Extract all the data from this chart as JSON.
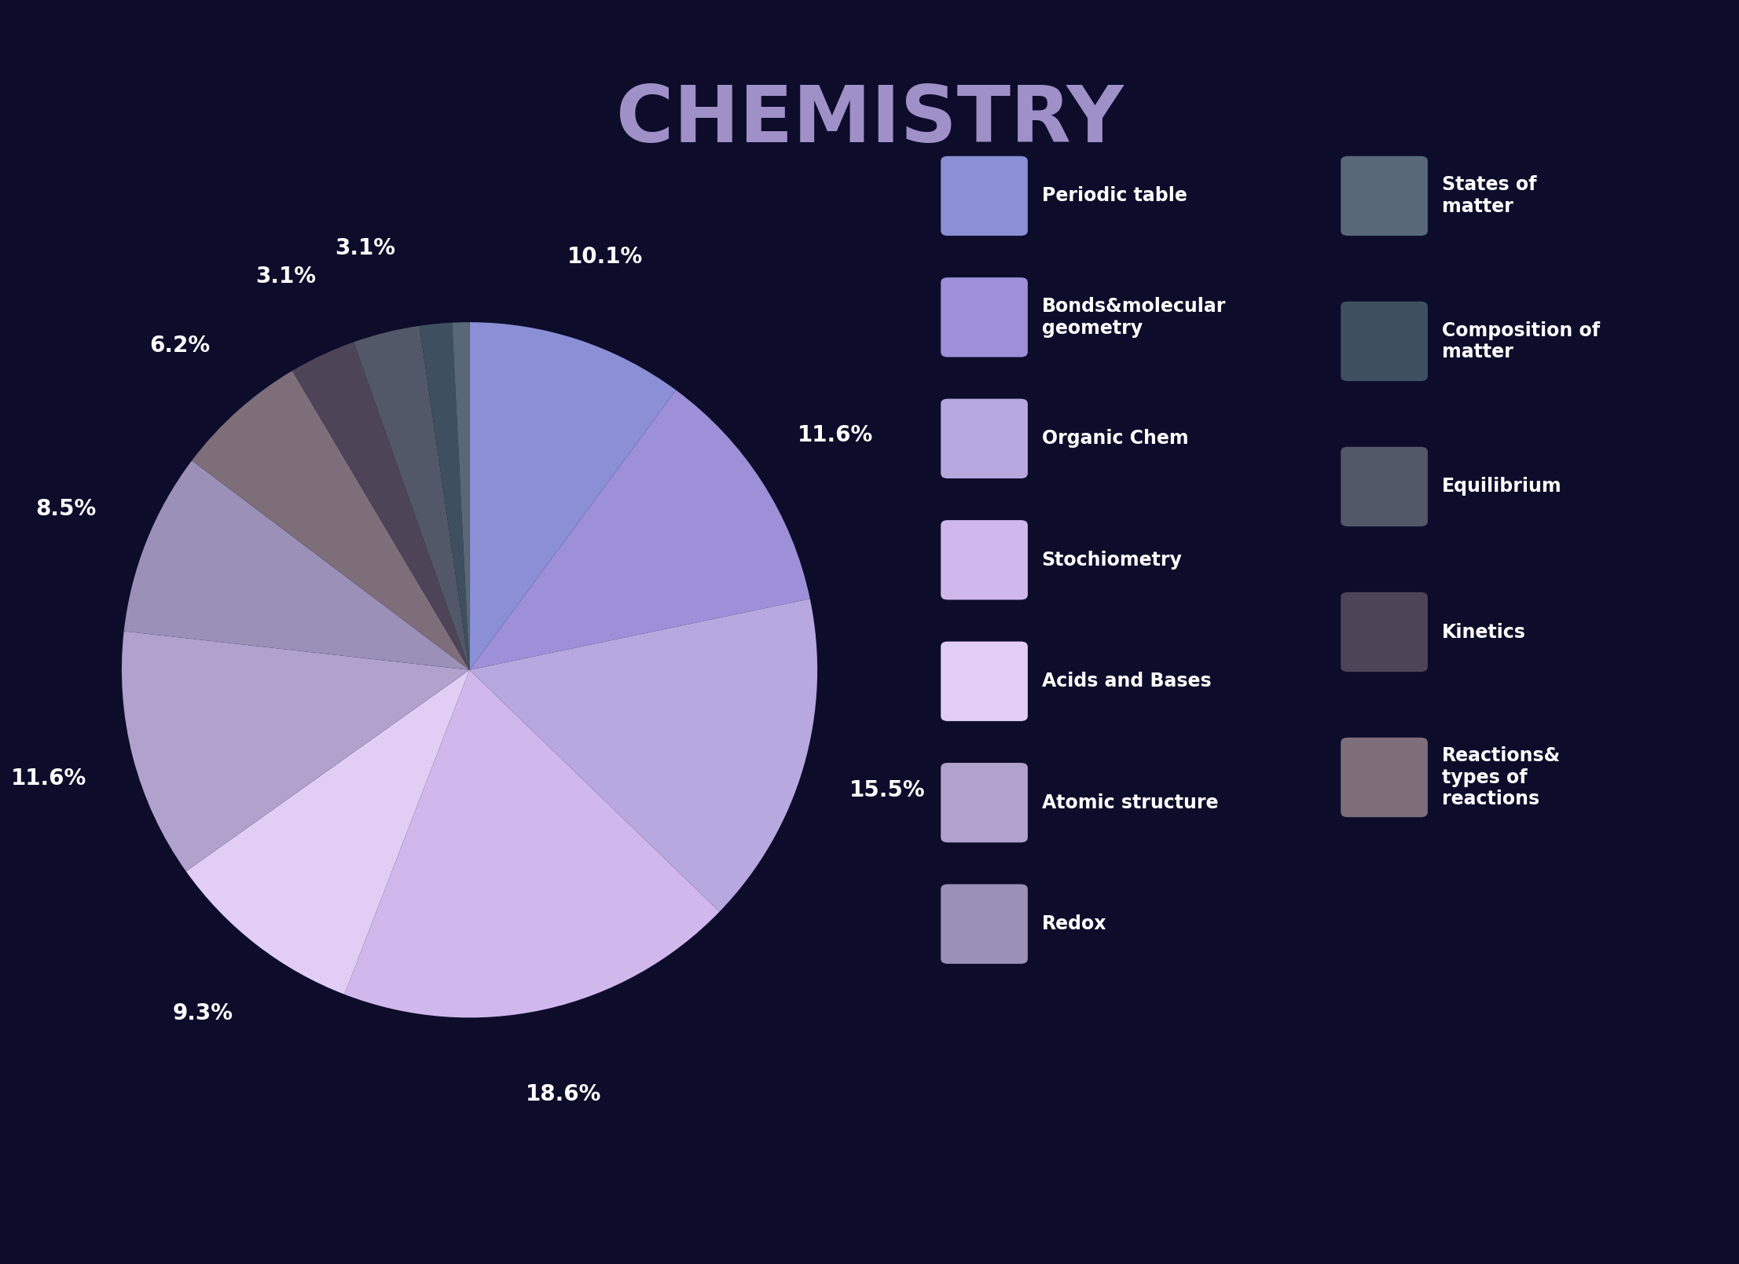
{
  "title": "CHEMISTRY",
  "background_color": "#0d0d2b",
  "title_color": "#a090c8",
  "slices": [
    {
      "label": "Periodic table",
      "pct": 10.1,
      "color": "#8b8fd6"
    },
    {
      "label": "Bonds&molecular\ngeometry",
      "pct": 11.6,
      "color": "#9d90d8"
    },
    {
      "label": "Organic Chem",
      "pct": 15.5,
      "color": "#b8a8e0"
    },
    {
      "label": "Stochiometry",
      "pct": 18.6,
      "color": "#d0b8ec"
    },
    {
      "label": "Acids and Bases",
      "pct": 9.3,
      "color": "#e2cef5"
    },
    {
      "label": "Atomic structure",
      "pct": 11.6,
      "color": "#b0a2cc"
    },
    {
      "label": "Redox",
      "pct": 8.5,
      "color": "#9a90b8"
    },
    {
      "label": "Reactions&\ntypes of reactions",
      "pct": 6.2,
      "color": "#7d6e7a"
    },
    {
      "label": "Kinetics",
      "pct": 3.1,
      "color": "#4e4458"
    },
    {
      "label": "Equilibrium",
      "pct": 3.1,
      "color": "#525868"
    },
    {
      "label": "Composition of\nmatter",
      "pct": 1.5,
      "color": "#3e5060"
    },
    {
      "label": "States of\nmatter",
      "pct": 0.8,
      "color": "#586878"
    }
  ],
  "pct_show": [
    10.1,
    11.6,
    15.5,
    18.6,
    9.3,
    11.6,
    8.5,
    6.2,
    3.1
  ],
  "legend_left": [
    {
      "label": "Periodic table",
      "color": "#8b8fd6"
    },
    {
      "label": "Bonds&molecular\ngeometry",
      "color": "#9d90d8"
    },
    {
      "label": "Organic Chem",
      "color": "#b8a8e0"
    },
    {
      "label": "Stochiometry",
      "color": "#d0b8ec"
    },
    {
      "label": "Acids and Bases",
      "color": "#e2cef5"
    },
    {
      "label": "Atomic structure",
      "color": "#b0a2cc"
    },
    {
      "label": "Redox",
      "color": "#9a90b8"
    }
  ],
  "legend_right": [
    {
      "label": "States of\nmatter",
      "color": "#586878"
    },
    {
      "label": "Composition of\nmatter",
      "color": "#3e5060"
    },
    {
      "label": "Equilibrium",
      "color": "#525868"
    },
    {
      "label": "Kinetics",
      "color": "#4e4458"
    },
    {
      "label": "Reactions&\ntypes of\nreactions",
      "color": "#7d6e7a"
    }
  ],
  "text_color": "#ffffff",
  "pct_fontsize": 20,
  "legend_fontsize": 17,
  "title_fontsize": 72
}
